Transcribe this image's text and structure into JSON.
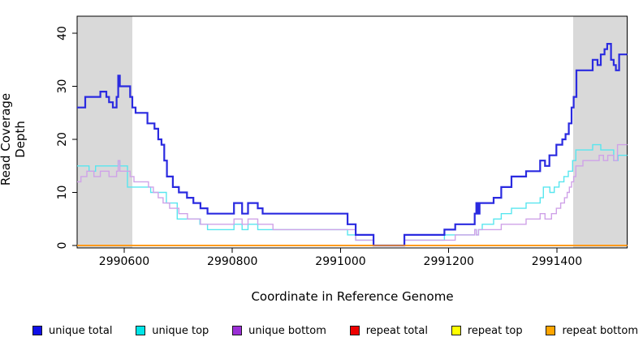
{
  "figure": {
    "background": "#ffffff",
    "band_color": "#d9d9d9",
    "axis_color": "#000000"
  },
  "chart_data": {
    "type": "line",
    "step": true,
    "title": "",
    "xlabel": "Coordinate in Reference Genome",
    "ylabel": "Read Coverage Depth",
    "xlim": [
      2990513,
      2991530
    ],
    "ylim": [
      0,
      43.2
    ],
    "x_ticks": [
      2990600,
      2990800,
      2991000,
      2991200,
      2991400
    ],
    "y_ticks": [
      0,
      10,
      20,
      30,
      40
    ],
    "grid": false,
    "legend_position": "bottom",
    "shaded_regions": [
      {
        "x0": 2990513,
        "x1": 2990615,
        "color": "#d9d9d9"
      },
      {
        "x0": 2991430,
        "x1": 2991530,
        "color": "#d9d9d9"
      }
    ],
    "series": [
      {
        "name": "repeat total",
        "swatch_color": "#ee0000",
        "line_color": "#ee0000",
        "line_width": 1.5,
        "points": [
          [
            2990513,
            0
          ]
        ]
      },
      {
        "name": "repeat top",
        "swatch_color": "#ffff00",
        "line_color": "#ffee00",
        "line_width": 1.5,
        "points": [
          [
            2990513,
            0
          ]
        ]
      },
      {
        "name": "unique top",
        "swatch_color": "#00e5e8",
        "line_color": "#58e6ef",
        "line_width": 1.4,
        "points": [
          [
            2990513,
            15
          ],
          [
            2990535,
            14
          ],
          [
            2990547,
            15
          ],
          [
            2990589,
            16
          ],
          [
            2990592,
            15
          ],
          [
            2990606,
            11
          ],
          [
            2990649,
            10
          ],
          [
            2990678,
            8
          ],
          [
            2990698,
            5
          ],
          [
            2990740,
            4
          ],
          [
            2990754,
            3
          ],
          [
            2990803,
            4
          ],
          [
            2990818,
            3
          ],
          [
            2990829,
            4
          ],
          [
            2990847,
            3
          ],
          [
            2991013,
            2
          ],
          [
            2991028,
            1
          ],
          [
            2991061,
            0
          ],
          [
            2991118,
            1
          ],
          [
            2991192,
            2
          ],
          [
            2991248,
            3
          ],
          [
            2991251,
            2
          ],
          [
            2991255,
            3
          ],
          [
            2991262,
            4
          ],
          [
            2991283,
            5
          ],
          [
            2991297,
            6
          ],
          [
            2991316,
            7
          ],
          [
            2991343,
            8
          ],
          [
            2991369,
            9
          ],
          [
            2991375,
            11
          ],
          [
            2991387,
            10
          ],
          [
            2991395,
            11
          ],
          [
            2991404,
            12
          ],
          [
            2991413,
            13
          ],
          [
            2991421,
            14
          ],
          [
            2991429,
            16
          ],
          [
            2991435,
            18
          ],
          [
            2991466,
            19
          ],
          [
            2991481,
            18
          ],
          [
            2991505,
            16
          ],
          [
            2991513,
            17
          ]
        ]
      },
      {
        "name": "unique bottom",
        "swatch_color": "#9b2fd6",
        "line_color": "#cfa2e8",
        "line_width": 1.4,
        "points": [
          [
            2990513,
            12
          ],
          [
            2990520,
            13
          ],
          [
            2990531,
            14
          ],
          [
            2990544,
            13
          ],
          [
            2990556,
            14
          ],
          [
            2990572,
            13
          ],
          [
            2990586,
            14
          ],
          [
            2990589,
            16
          ],
          [
            2990592,
            14
          ],
          [
            2990611,
            13
          ],
          [
            2990618,
            12
          ],
          [
            2990645,
            11
          ],
          [
            2990654,
            10
          ],
          [
            2990663,
            9
          ],
          [
            2990672,
            8
          ],
          [
            2990684,
            7
          ],
          [
            2990701,
            6
          ],
          [
            2990717,
            5
          ],
          [
            2990741,
            4
          ],
          [
            2990803,
            5
          ],
          [
            2990818,
            4
          ],
          [
            2990829,
            5
          ],
          [
            2990847,
            4
          ],
          [
            2990875,
            3
          ],
          [
            2991028,
            1
          ],
          [
            2991061,
            0
          ],
          [
            2991118,
            1
          ],
          [
            2991212,
            2
          ],
          [
            2991248,
            3
          ],
          [
            2991251,
            2
          ],
          [
            2991255,
            3
          ],
          [
            2991297,
            4
          ],
          [
            2991343,
            5
          ],
          [
            2991369,
            6
          ],
          [
            2991378,
            5
          ],
          [
            2991390,
            6
          ],
          [
            2991399,
            7
          ],
          [
            2991407,
            8
          ],
          [
            2991414,
            9
          ],
          [
            2991419,
            10
          ],
          [
            2991423,
            11
          ],
          [
            2991427,
            12
          ],
          [
            2991431,
            13
          ],
          [
            2991435,
            15
          ],
          [
            2991448,
            16
          ],
          [
            2991478,
            17
          ],
          [
            2991486,
            16
          ],
          [
            2991494,
            17
          ],
          [
            2991505,
            16
          ],
          [
            2991512,
            19
          ]
        ]
      },
      {
        "name": "unique total",
        "swatch_color": "#1010e8",
        "line_color": "#2a2ae0",
        "line_width": 2.2,
        "points": [
          [
            2990513,
            26
          ],
          [
            2990528,
            28
          ],
          [
            2990556,
            29
          ],
          [
            2990567,
            28
          ],
          [
            2990572,
            27
          ],
          [
            2990579,
            26
          ],
          [
            2990586,
            28
          ],
          [
            2990589,
            32
          ],
          [
            2990592,
            30
          ],
          [
            2990611,
            28
          ],
          [
            2990615,
            26
          ],
          [
            2990621,
            25
          ],
          [
            2990643,
            23
          ],
          [
            2990656,
            22
          ],
          [
            2990663,
            20
          ],
          [
            2990669,
            19
          ],
          [
            2990674,
            16
          ],
          [
            2990679,
            13
          ],
          [
            2990690,
            11
          ],
          [
            2990701,
            10
          ],
          [
            2990716,
            9
          ],
          [
            2990728,
            8
          ],
          [
            2990741,
            7
          ],
          [
            2990754,
            6
          ],
          [
            2990803,
            8
          ],
          [
            2990818,
            6
          ],
          [
            2990829,
            8
          ],
          [
            2990847,
            7
          ],
          [
            2990856,
            6
          ],
          [
            2991013,
            4
          ],
          [
            2991028,
            2
          ],
          [
            2991061,
            0
          ],
          [
            2991118,
            2
          ],
          [
            2991192,
            3
          ],
          [
            2991212,
            4
          ],
          [
            2991248,
            6
          ],
          [
            2991251,
            8
          ],
          [
            2991254,
            6
          ],
          [
            2991257,
            8
          ],
          [
            2991283,
            9
          ],
          [
            2991297,
            11
          ],
          [
            2991316,
            13
          ],
          [
            2991343,
            14
          ],
          [
            2991369,
            16
          ],
          [
            2991378,
            15
          ],
          [
            2991386,
            17
          ],
          [
            2991399,
            19
          ],
          [
            2991410,
            20
          ],
          [
            2991416,
            21
          ],
          [
            2991422,
            23
          ],
          [
            2991427,
            26
          ],
          [
            2991431,
            28
          ],
          [
            2991436,
            33
          ],
          [
            2991466,
            35
          ],
          [
            2991475,
            34
          ],
          [
            2991481,
            36
          ],
          [
            2991488,
            37
          ],
          [
            2991493,
            38
          ],
          [
            2991500,
            35
          ],
          [
            2991505,
            34
          ],
          [
            2991509,
            33
          ],
          [
            2991515,
            36
          ]
        ]
      },
      {
        "name": "repeat bottom",
        "swatch_color": "#ffa500",
        "line_color": "#ff9414",
        "line_width": 1.6,
        "points": [
          [
            2990513,
            0
          ]
        ]
      }
    ],
    "legend": [
      {
        "label": "unique total",
        "color": "#1010e8"
      },
      {
        "label": "unique top",
        "color": "#00e5e8"
      },
      {
        "label": "unique bottom",
        "color": "#9b2fd6"
      },
      {
        "label": "repeat total",
        "color": "#ee0000"
      },
      {
        "label": "repeat top",
        "color": "#ffff00"
      },
      {
        "label": "repeat bottom",
        "color": "#ffa500"
      }
    ]
  }
}
